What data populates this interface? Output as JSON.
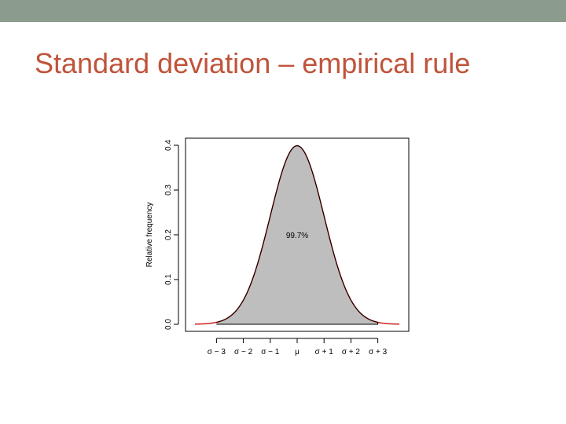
{
  "slide": {
    "title": "Standard deviation – empirical rule",
    "accent_color": "#c0543a",
    "top_bar_color": "#8c9c8c"
  },
  "chart_data": {
    "type": "area",
    "title": "",
    "xlabel": "",
    "ylabel": "Relative frequency",
    "curve": "normal density, mean 0, sd 1",
    "x_range": [
      -3.8,
      3.8
    ],
    "ylim": [
      0,
      0.4
    ],
    "y_ticks": [
      "0.0",
      "0.1",
      "0.2",
      "0.3",
      "0.4"
    ],
    "y_tick_values": [
      0,
      0.1,
      0.2,
      0.3,
      0.4
    ],
    "x_ticks": [
      "σ − 3",
      "σ − 2",
      "σ − 1",
      "μ",
      "σ + 1",
      "σ + 2",
      "σ + 3"
    ],
    "x_tick_values": [
      -3,
      -2,
      -1,
      0,
      1,
      2,
      3
    ],
    "shaded_region": [
      -3,
      3
    ],
    "annotation": "99.7%",
    "colors": {
      "fill": "#bebebe",
      "outline": "#000000",
      "curve": "#cc2222"
    }
  }
}
